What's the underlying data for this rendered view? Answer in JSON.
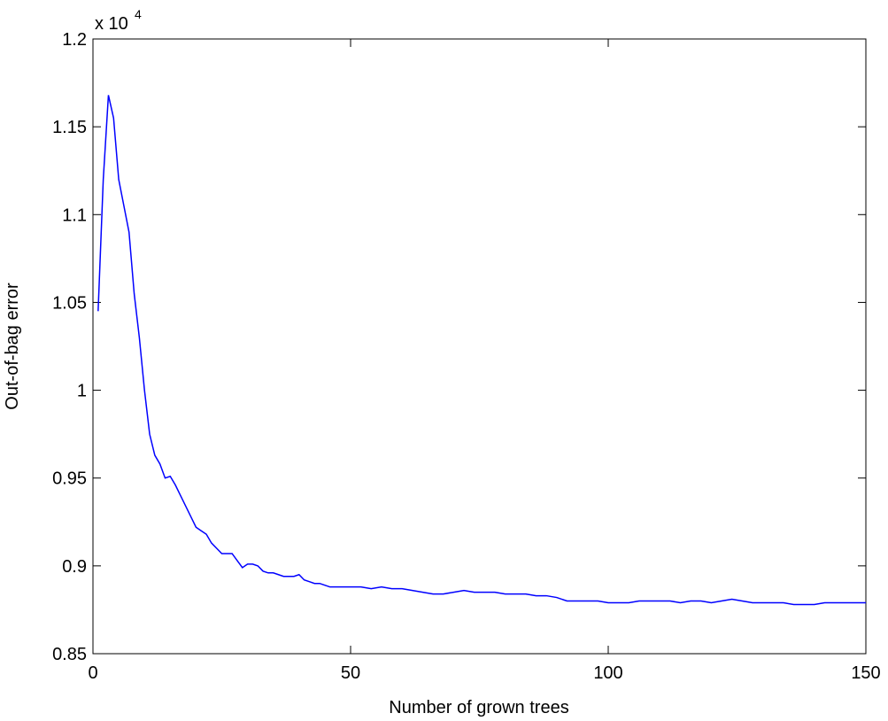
{
  "chart_data": {
    "type": "line",
    "title": "",
    "xlabel": "Number of grown trees",
    "ylabel": "Out-of-bag  error",
    "y_multiplier_label": {
      "base": "x 10",
      "exponent": "4"
    },
    "xlim": [
      0,
      150
    ],
    "ylim": [
      0.85,
      1.2
    ],
    "x_ticks": [
      0,
      50,
      100,
      150
    ],
    "x_tick_labels": [
      "0",
      "50",
      "100",
      "150"
    ],
    "y_ticks": [
      0.85,
      0.9,
      0.95,
      1.0,
      1.05,
      1.1,
      1.15,
      1.2
    ],
    "y_tick_labels": [
      "0.85",
      "0.9",
      "0.95",
      "1",
      "1.05",
      "1.1",
      "1.15",
      "1.2"
    ],
    "grid": false,
    "line_color": "#0000ff",
    "series": [
      {
        "x": [
          1,
          2,
          3,
          4,
          5,
          6,
          7,
          8,
          9,
          10,
          11,
          12,
          13,
          14,
          15,
          16,
          17,
          18,
          19,
          20,
          21,
          22,
          23,
          24,
          25,
          26,
          27,
          28,
          29,
          30,
          31,
          32,
          33,
          34,
          35,
          36,
          37,
          38,
          39,
          40,
          41,
          42,
          43,
          44,
          45,
          46,
          47,
          48,
          49,
          50,
          52,
          54,
          56,
          58,
          60,
          62,
          64,
          66,
          68,
          70,
          72,
          74,
          76,
          78,
          80,
          82,
          84,
          86,
          88,
          90,
          92,
          94,
          96,
          98,
          100,
          102,
          104,
          106,
          108,
          110,
          112,
          114,
          116,
          118,
          120,
          122,
          124,
          126,
          128,
          130,
          132,
          134,
          136,
          138,
          140,
          142,
          144,
          146,
          148,
          150
        ],
        "y": [
          1.045,
          1.12,
          1.168,
          1.155,
          1.12,
          1.105,
          1.09,
          1.055,
          1.03,
          1.0,
          0.975,
          0.963,
          0.958,
          0.95,
          0.951,
          0.946,
          0.94,
          0.934,
          0.928,
          0.922,
          0.92,
          0.918,
          0.913,
          0.91,
          0.907,
          0.907,
          0.907,
          0.903,
          0.899,
          0.901,
          0.901,
          0.9,
          0.897,
          0.896,
          0.896,
          0.895,
          0.894,
          0.894,
          0.894,
          0.895,
          0.892,
          0.891,
          0.89,
          0.89,
          0.889,
          0.888,
          0.888,
          0.888,
          0.888,
          0.888,
          0.888,
          0.887,
          0.888,
          0.887,
          0.887,
          0.886,
          0.885,
          0.884,
          0.884,
          0.885,
          0.886,
          0.885,
          0.885,
          0.885,
          0.884,
          0.884,
          0.884,
          0.883,
          0.883,
          0.882,
          0.88,
          0.88,
          0.88,
          0.88,
          0.879,
          0.879,
          0.879,
          0.88,
          0.88,
          0.88,
          0.88,
          0.879,
          0.88,
          0.88,
          0.879,
          0.88,
          0.881,
          0.88,
          0.879,
          0.879,
          0.879,
          0.879,
          0.878,
          0.878,
          0.878,
          0.879,
          0.879,
          0.879,
          0.879,
          0.879
        ]
      }
    ]
  }
}
